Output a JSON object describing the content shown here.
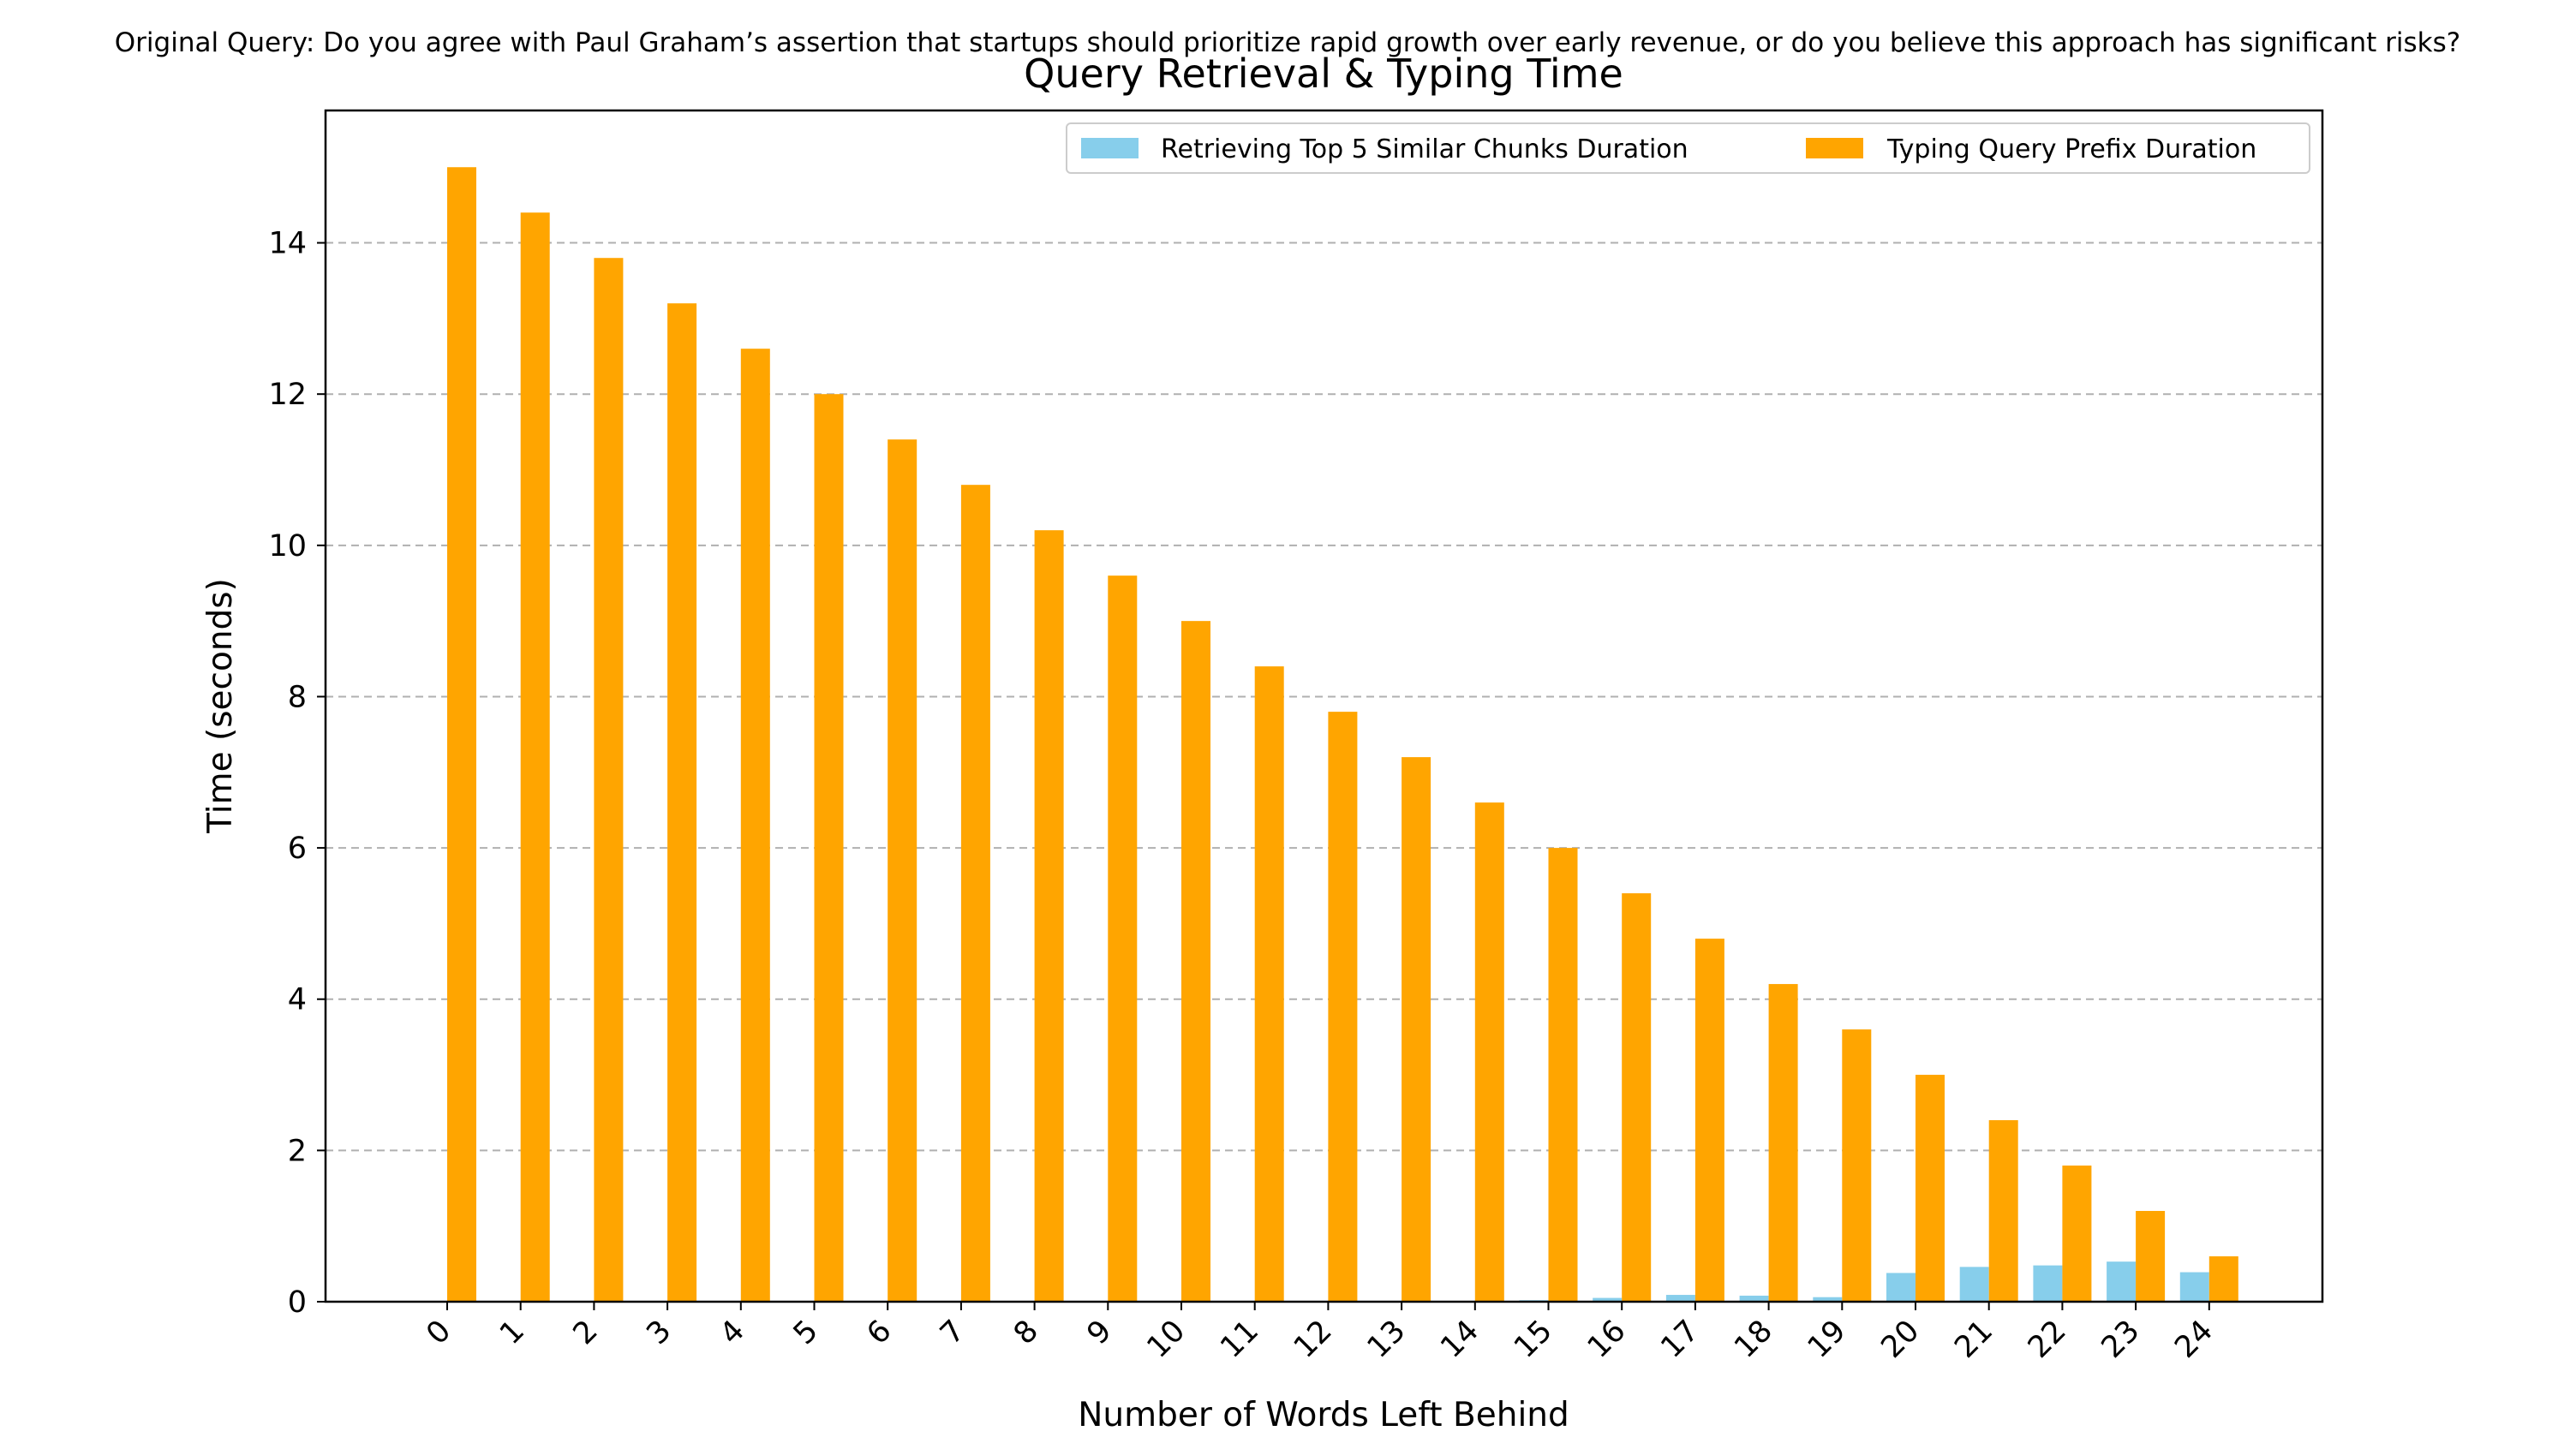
{
  "chart_data": {
    "type": "bar",
    "suptitle": "Original Query: Do you agree with Paul Graham’s assertion that startups should prioritize rapid growth over early revenue, or do you believe this approach has significant risks?",
    "title": "Query Retrieval & Typing Time",
    "xlabel": "Number of Words Left Behind",
    "ylabel": "Time (seconds)",
    "categories": [
      "0",
      "1",
      "2",
      "3",
      "4",
      "5",
      "6",
      "7",
      "8",
      "9",
      "10",
      "11",
      "12",
      "13",
      "14",
      "15",
      "16",
      "17",
      "18",
      "19",
      "20",
      "21",
      "22",
      "23",
      "24"
    ],
    "series": [
      {
        "name": "Retrieving Top 5 Similar Chunks Duration",
        "color": "#87ceeb",
        "values": [
          0,
          0,
          0,
          0,
          0,
          0,
          0,
          0,
          0,
          0,
          0,
          0,
          0,
          0,
          0.01,
          0.02,
          0.05,
          0.09,
          0.08,
          0.06,
          0.38,
          0.46,
          0.48,
          0.53,
          0.39
        ]
      },
      {
        "name": "Typing Query Prefix Duration",
        "color": "#ffa500",
        "values": [
          15.0,
          14.4,
          13.8,
          13.2,
          12.6,
          12.0,
          11.4,
          10.8,
          10.2,
          9.6,
          9.0,
          8.4,
          7.8,
          7.2,
          6.6,
          6.0,
          5.4,
          4.8,
          4.2,
          3.6,
          3.0,
          2.4,
          1.8,
          1.2,
          0.6
        ]
      }
    ],
    "yticks": [
      0,
      2,
      4,
      6,
      8,
      10,
      12,
      14
    ],
    "ylim": [
      0,
      15.75
    ],
    "grid": "y-dashed",
    "legend_position": "top-right"
  }
}
